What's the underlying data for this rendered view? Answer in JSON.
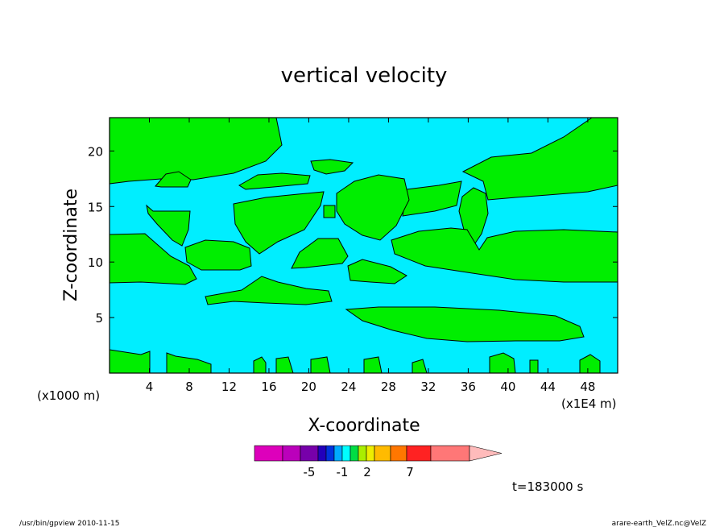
{
  "chart_data": {
    "type": "contour",
    "title": "vertical velocity",
    "xlabel": "X-coordinate",
    "ylabel": "Z-coordinate",
    "x_unit_left": "(x1000 m)",
    "x_unit_right": "(x1E4 m)",
    "xlim": [
      0,
      51
    ],
    "ylim": [
      0,
      23
    ],
    "x_ticks": [
      4,
      8,
      12,
      16,
      20,
      24,
      28,
      32,
      36,
      40,
      44,
      48
    ],
    "y_ticks": [
      5,
      10,
      15,
      20
    ],
    "levels": [
      "-5",
      "-1",
      "2",
      "7"
    ],
    "colorbar_colors": [
      "#dd00bb",
      "#bb00bb",
      "#7700aa",
      "#2200bb",
      "#0033dd",
      "#00aaff",
      "#00ffff",
      "#00dd44",
      "#aaee00",
      "#eeee00",
      "#ffbb00",
      "#ff7700",
      "#ff2222",
      "#ff7777",
      "#ffbbbb"
    ],
    "fill_negative_color": "#00eeff",
    "fill_positive_color": "#00ee00",
    "time_label": "t=183000 s"
  },
  "footer": {
    "left": "/usr/bin/gpview   2010-11-15",
    "right": "arare-earth_VelZ.nc@VelZ"
  }
}
